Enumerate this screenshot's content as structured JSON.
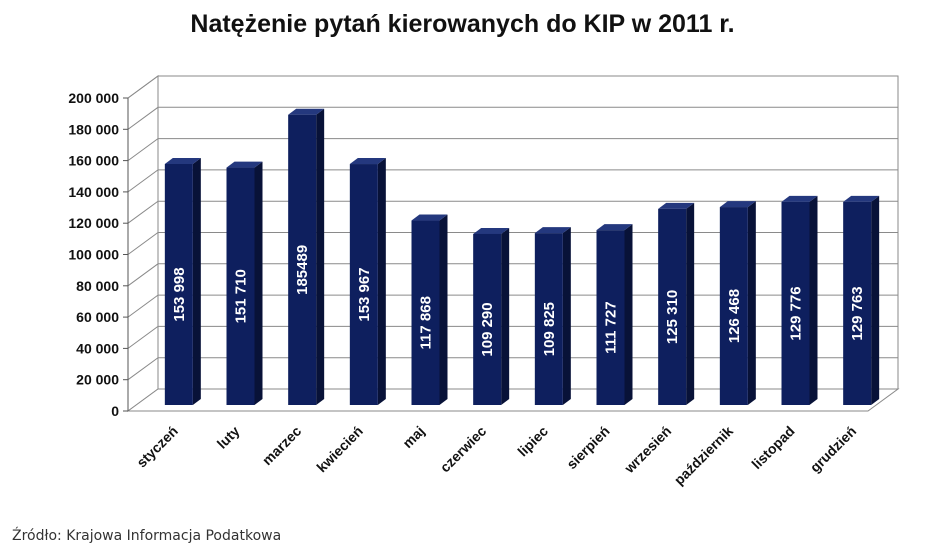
{
  "chart_data": {
    "type": "bar",
    "title": "Natężenie pytań kierowanych do KIP w 2011 r.",
    "categories": [
      "styczeń",
      "luty",
      "marzec",
      "kwiecień",
      "maj",
      "czerwiec",
      "lipiec",
      "sierpień",
      "wrzesień",
      "październik",
      "listopad",
      "grudzień"
    ],
    "values": [
      153998,
      151710,
      185489,
      153967,
      117868,
      109290,
      109825,
      111727,
      125310,
      126468,
      129776,
      129763
    ],
    "value_labels": [
      "153 998",
      "151 710",
      "185489",
      "153 967",
      "117 868",
      "109 290",
      "109 825",
      "111 727",
      "125 310",
      "126 468",
      "129 776",
      "129 763"
    ],
    "yticks": [
      0,
      20000,
      40000,
      60000,
      80000,
      100000,
      120000,
      140000,
      160000,
      180000,
      200000
    ],
    "ytick_labels": [
      "0",
      "20 000",
      "40 000",
      "60 000",
      "80 000",
      "100 000",
      "120 000",
      "140 000",
      "160 000",
      "180 000",
      "200 000"
    ],
    "ylim": [
      0,
      200000
    ],
    "grid": true,
    "legend": "none",
    "bar_color": "#0e1f5e",
    "bar_side_color": "#081238",
    "bar_top_color": "#24387e"
  },
  "source": "Źródło: Krajowa Informacja Podatkowa"
}
